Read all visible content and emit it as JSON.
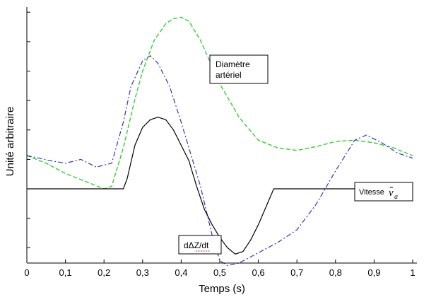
{
  "chart_data": {
    "type": "line",
    "xlabel": "Temps (s)",
    "ylabel": "Unité arbitraire",
    "xlim": [
      0,
      1
    ],
    "ylim": [
      0,
      10
    ],
    "x_ticks": [
      0,
      0.1,
      0.2,
      0.3,
      0.4,
      0.5,
      0.6,
      0.7,
      0.8,
      0.9,
      1
    ],
    "x_tick_labels": [
      "0",
      "0,1",
      "0,2",
      "0,3",
      "0,4",
      "0,5",
      "0,6",
      "0,7",
      "0,8",
      "0,9",
      "1"
    ],
    "y_ticks": [
      0.6,
      1.75,
      2.9,
      4.05,
      5.2,
      6.35,
      7.5,
      8.65,
      9.8
    ],
    "grid": false,
    "annotations": [
      {
        "text_lines": [
          "Diamètre",
          "artériel"
        ],
        "x": 0.48,
        "y": 7.8
      },
      {
        "text": "Vitesse",
        "symbol": "v",
        "subscript": "a",
        "x": 0.89,
        "y": 2.9
      },
      {
        "text": "dΔZ/dt",
        "x": 0.43,
        "y": 0.6
      }
    ],
    "series": [
      {
        "style": "dashed",
        "color": "#33cc33",
        "x": [
          0,
          0.05,
          0.1,
          0.15,
          0.2,
          0.22,
          0.25,
          0.28,
          0.3,
          0.33,
          0.36,
          0.38,
          0.4,
          0.42,
          0.45,
          0.5,
          0.55,
          0.6,
          0.65,
          0.7,
          0.75,
          0.8,
          0.85,
          0.9,
          0.95,
          1
        ],
        "y": [
          4.2,
          3.9,
          3.5,
          3.2,
          2.9,
          3.0,
          4.5,
          6.4,
          7.5,
          8.7,
          9.35,
          9.55,
          9.6,
          9.45,
          8.7,
          7.0,
          5.7,
          4.8,
          4.5,
          4.4,
          4.55,
          4.75,
          4.8,
          4.7,
          4.5,
          4.2
        ]
      },
      {
        "style": "dashdot",
        "color": "#3333bb",
        "x": [
          0,
          0.03,
          0.06,
          0.1,
          0.14,
          0.18,
          0.22,
          0.25,
          0.27,
          0.3,
          0.32,
          0.34,
          0.37,
          0.4,
          0.45,
          0.48,
          0.5,
          0.52,
          0.55,
          0.6,
          0.65,
          0.7,
          0.75,
          0.8,
          0.85,
          0.88,
          0.92,
          0.96,
          1
        ],
        "y": [
          4.2,
          4.1,
          4.0,
          3.9,
          4.05,
          3.75,
          3.9,
          5.5,
          6.9,
          7.9,
          8.1,
          7.8,
          6.9,
          5.5,
          3.0,
          1.1,
          0.1,
          -0.1,
          0.0,
          0.4,
          0.8,
          1.3,
          2.3,
          3.6,
          4.8,
          5.0,
          4.7,
          4.3,
          4.1
        ]
      },
      {
        "style": "solid",
        "color": "#000000",
        "x": [
          0,
          0.25,
          0.26,
          0.28,
          0.3,
          0.32,
          0.34,
          0.36,
          0.38,
          0.4,
          0.42,
          0.44,
          0.46,
          0.48,
          0.5,
          0.52,
          0.54,
          0.56,
          0.58,
          0.6,
          0.62,
          0.64,
          1
        ],
        "y": [
          2.9,
          2.9,
          3.3,
          4.6,
          5.3,
          5.6,
          5.7,
          5.6,
          5.2,
          4.6,
          4.0,
          3.0,
          2.1,
          1.5,
          1.0,
          0.6,
          0.35,
          0.45,
          0.9,
          1.5,
          2.2,
          2.9,
          2.9
        ]
      }
    ]
  }
}
